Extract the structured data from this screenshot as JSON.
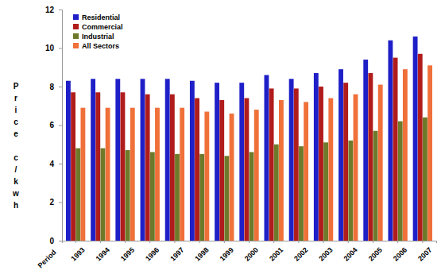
{
  "chart_data": {
    "type": "bar",
    "x_label": "Period",
    "y_label": "Price c/kwh",
    "categories": [
      "1993",
      "1994",
      "1995",
      "1996",
      "1997",
      "1998",
      "1999",
      "2000",
      "2001",
      "2002",
      "2003",
      "2004",
      "2005",
      "2006",
      "2007"
    ],
    "series": [
      {
        "name": "Residential",
        "color": "#1f1fc8",
        "values": [
          8.3,
          8.4,
          8.4,
          8.4,
          8.4,
          8.3,
          8.2,
          8.2,
          8.6,
          8.4,
          8.7,
          8.9,
          9.4,
          10.4,
          10.6
        ]
      },
      {
        "name": "Commercial",
        "color": "#b01c1c",
        "values": [
          7.7,
          7.7,
          7.7,
          7.6,
          7.6,
          7.4,
          7.3,
          7.4,
          7.9,
          7.9,
          8.0,
          8.2,
          8.7,
          9.5,
          9.7
        ]
      },
      {
        "name": "Industrial",
        "color": "#6e7a2a",
        "values": [
          4.8,
          4.8,
          4.7,
          4.6,
          4.5,
          4.5,
          4.4,
          4.6,
          5.0,
          4.9,
          5.1,
          5.2,
          5.7,
          6.2,
          6.4
        ]
      },
      {
        "name": "All Sectors",
        "color": "#f0703a",
        "values": [
          6.9,
          6.9,
          6.9,
          6.9,
          6.9,
          6.7,
          6.6,
          6.8,
          7.3,
          7.2,
          7.4,
          7.6,
          8.1,
          8.9,
          9.1
        ]
      }
    ],
    "ylim": [
      0,
      12
    ],
    "yticks": [
      0,
      2,
      4,
      6,
      8,
      10,
      12
    ],
    "grid": false,
    "legend": "upper left"
  }
}
